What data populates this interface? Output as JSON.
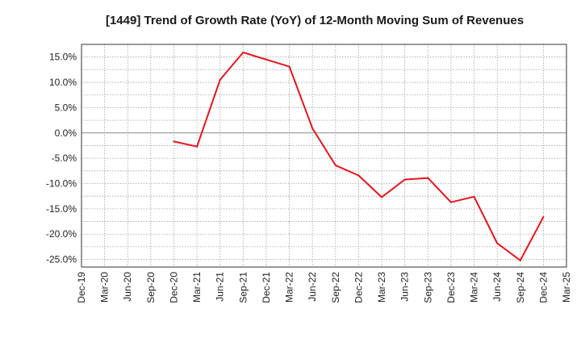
{
  "chart_data": {
    "type": "line",
    "title": "[1449]  Trend of Growth Rate (YoY) of 12-Month Moving Sum of Revenues",
    "xlabel": "",
    "ylabel": "",
    "categories": [
      "Dec-19",
      "Mar-20",
      "Jun-20",
      "Sep-20",
      "Dec-20",
      "Mar-21",
      "Jun-21",
      "Sep-21",
      "Dec-21",
      "Mar-22",
      "Jun-22",
      "Sep-22",
      "Dec-22",
      "Mar-23",
      "Jun-23",
      "Sep-23",
      "Dec-23",
      "Mar-24",
      "Jun-24",
      "Sep-24",
      "Dec-24",
      "Mar-25"
    ],
    "ylim": [
      -26.5,
      17.5
    ],
    "yticks": [
      15,
      10,
      5,
      0,
      -5,
      -10,
      -15,
      -20,
      -25
    ],
    "ytick_labels": [
      "15.0%",
      "10.0%",
      "5.0%",
      "0.0%",
      "-5.0%",
      "-10.0%",
      "-15.0%",
      "-20.0%",
      "-25.0%"
    ],
    "grid": true,
    "series": [
      {
        "color": "#e8141b",
        "values": [
          null,
          null,
          null,
          null,
          -1.7,
          -2.7,
          10.5,
          15.9,
          14.5,
          13.1,
          0.9,
          -6.4,
          -8.4,
          -12.7,
          -9.2,
          -8.9,
          -13.7,
          -12.6,
          -21.8,
          -25.2,
          -16.6,
          null
        ]
      }
    ]
  }
}
